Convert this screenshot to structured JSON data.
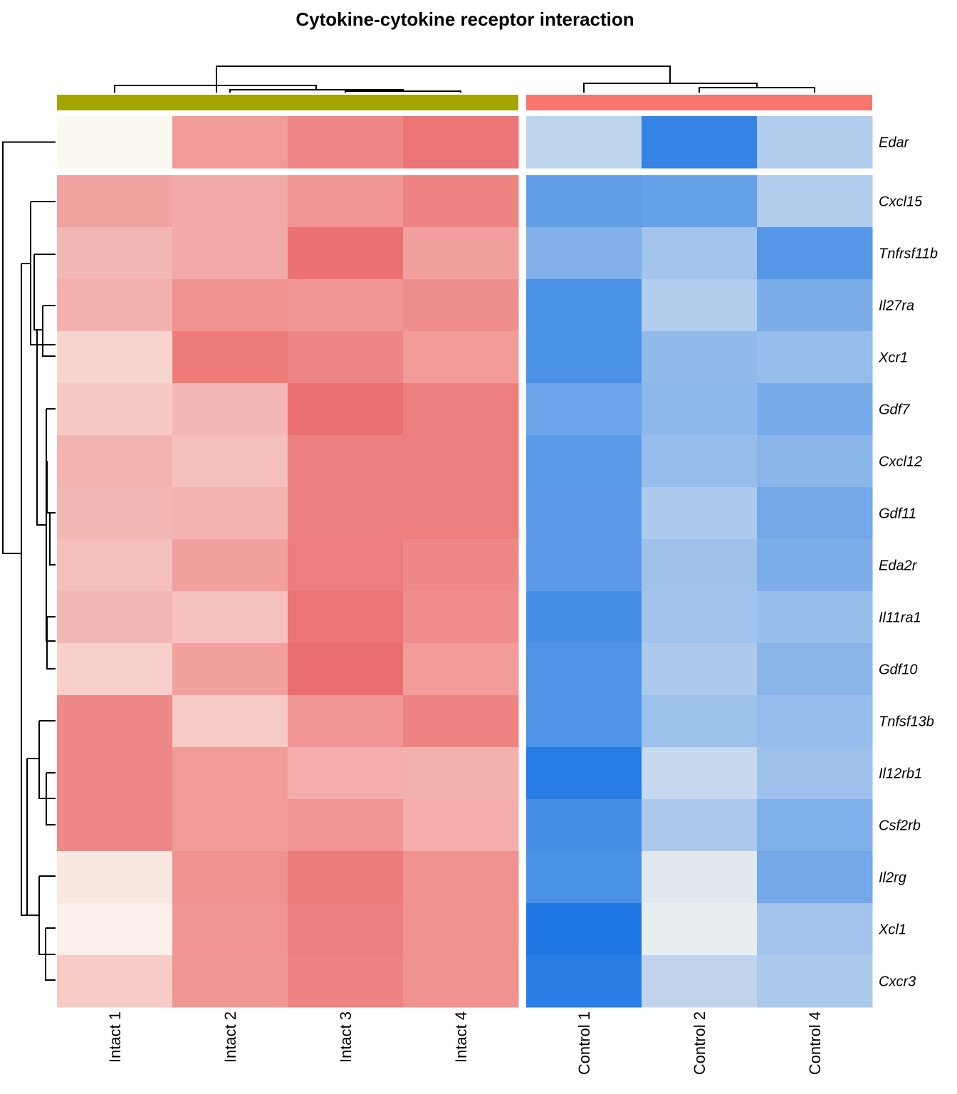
{
  "chart_data": {
    "type": "heatmap",
    "title": "Cytokine-cytokine receptor interaction",
    "columns": [
      "Intact 1",
      "Intact 2",
      "Intact 3",
      "Intact 4",
      "Control 1",
      "Control 2",
      "Control 4"
    ],
    "column_groups": [
      {
        "name": "Intact",
        "columns": [
          "Intact 1",
          "Intact 2",
          "Intact 3",
          "Intact 4"
        ],
        "color": "#A3A500"
      },
      {
        "name": "Control",
        "columns": [
          "Control 1",
          "Control 2",
          "Control 4"
        ],
        "color": "#F8766D"
      }
    ],
    "rows": [
      "Edar",
      "Cxcl15",
      "Tnfrsf11b",
      "Il27ra",
      "Xcr1",
      "Gdf7",
      "Cxcl12",
      "Gdf11",
      "Eda2r",
      "Il11ra1",
      "Gdf10",
      "Tnfsf13b",
      "Il12rb1",
      "Csf2rb",
      "Il2rg",
      "Xcl1",
      "Cxcr3"
    ],
    "row_gap_after": [
      "Edar"
    ],
    "column_gap_after": [
      "Intact 4"
    ],
    "color_scale": {
      "low": "#1F77E4",
      "mid": "#FBF8F1",
      "high": "#EB6A6A",
      "range": [
        -1,
        1
      ]
    },
    "values": [
      [
        0.0,
        0.65,
        0.78,
        0.92,
        -0.28,
        -0.9,
        -0.33
      ],
      [
        0.6,
        0.55,
        0.7,
        0.82,
        -0.7,
        -0.68,
        -0.33
      ],
      [
        0.45,
        0.55,
        0.95,
        0.62,
        -0.55,
        -0.4,
        -0.75
      ],
      [
        0.5,
        0.72,
        0.7,
        0.74,
        -0.8,
        -0.33,
        -0.58
      ],
      [
        0.25,
        0.88,
        0.8,
        0.65,
        -0.8,
        -0.48,
        -0.46
      ],
      [
        0.33,
        0.45,
        0.95,
        0.85,
        -0.65,
        -0.5,
        -0.6
      ],
      [
        0.48,
        0.4,
        0.85,
        0.85,
        -0.73,
        -0.46,
        -0.52
      ],
      [
        0.45,
        0.48,
        0.85,
        0.85,
        -0.72,
        -0.36,
        -0.62
      ],
      [
        0.4,
        0.62,
        0.86,
        0.78,
        -0.72,
        -0.42,
        -0.57
      ],
      [
        0.45,
        0.38,
        0.92,
        0.75,
        -0.82,
        -0.41,
        -0.45
      ],
      [
        0.28,
        0.62,
        0.97,
        0.65,
        -0.78,
        -0.36,
        -0.52
      ],
      [
        0.78,
        0.32,
        0.7,
        0.82,
        -0.78,
        -0.43,
        -0.46
      ],
      [
        0.78,
        0.65,
        0.52,
        0.5,
        -0.96,
        -0.24,
        -0.42
      ],
      [
        0.78,
        0.65,
        0.7,
        0.52,
        -0.82,
        -0.36,
        -0.56
      ],
      [
        0.12,
        0.72,
        0.88,
        0.72,
        -0.8,
        -0.12,
        -0.62
      ],
      [
        0.06,
        0.7,
        0.85,
        0.72,
        -1.0,
        -0.08,
        -0.4
      ],
      [
        0.32,
        0.68,
        0.82,
        0.72,
        -0.95,
        -0.27,
        -0.36
      ]
    ]
  }
}
